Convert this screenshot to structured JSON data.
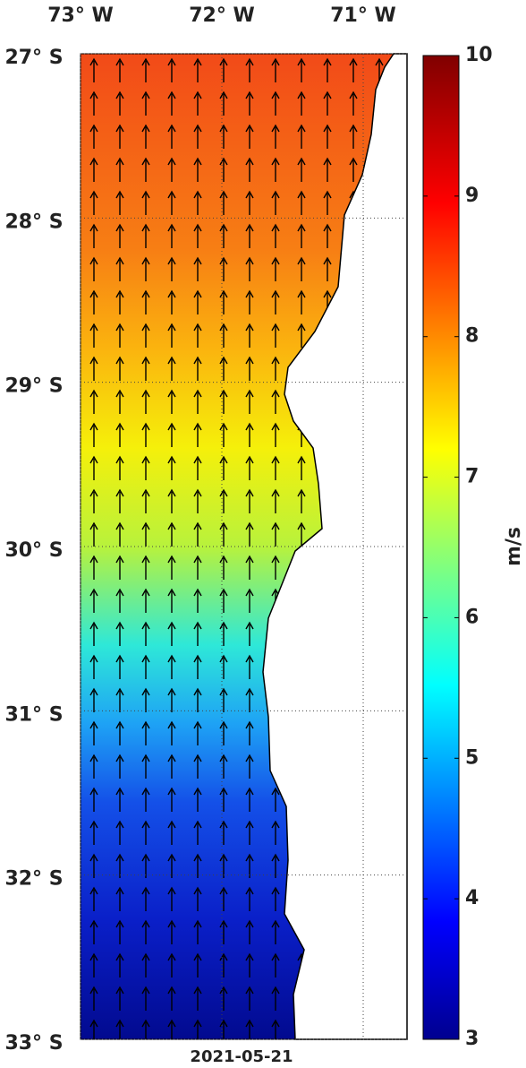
{
  "map": {
    "date": "2021-05-21",
    "lonlim": [
      73,
      70.69
    ],
    "latlim": [
      27,
      33
    ],
    "lonticks": [
      {
        "value": 73,
        "label": "73° W"
      },
      {
        "value": 72,
        "label": "72° W"
      },
      {
        "value": 71,
        "label": "71° W"
      }
    ],
    "latticks": [
      {
        "value": 27,
        "label": "27° S"
      },
      {
        "value": 28,
        "label": "28° S"
      },
      {
        "value": 29,
        "label": "29° S"
      },
      {
        "value": 30,
        "label": "30° S"
      },
      {
        "value": 31,
        "label": "31° S"
      },
      {
        "value": 32,
        "label": "32° S"
      },
      {
        "value": 33,
        "label": "33° S"
      }
    ],
    "colorbar": {
      "label": "m/s",
      "clim": [
        3,
        10
      ],
      "ticks": [
        3,
        4,
        5,
        6,
        7,
        8,
        9,
        10
      ]
    }
  }
}
